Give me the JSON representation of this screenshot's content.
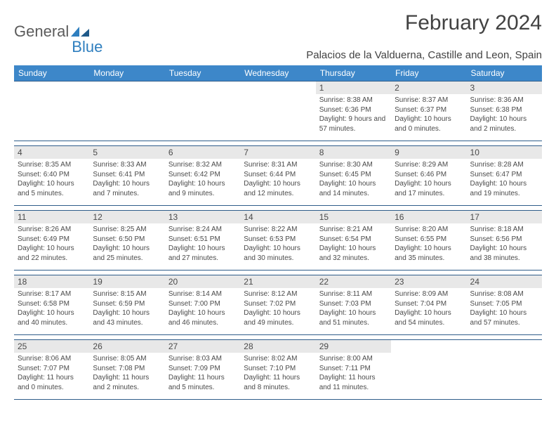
{
  "logo": {
    "textGeneral": "General",
    "textBlue": "Blue"
  },
  "title": "February 2024",
  "location": "Palacios de la Valduerna, Castille and Leon, Spain",
  "colors": {
    "headerBg": "#3d87c9",
    "headerText": "#ffffff",
    "divider": "#2f5d8a",
    "dayBarBg": "#e8e8e8",
    "bodyText": "#4a4a4a",
    "logoGeneral": "#5b5b5b",
    "logoBlue": "#2f7fbf"
  },
  "dayHeaders": [
    "Sunday",
    "Monday",
    "Tuesday",
    "Wednesday",
    "Thursday",
    "Friday",
    "Saturday"
  ],
  "weeks": [
    [
      {
        "day": "",
        "sunrise": "",
        "sunset": "",
        "daylight": ""
      },
      {
        "day": "",
        "sunrise": "",
        "sunset": "",
        "daylight": ""
      },
      {
        "day": "",
        "sunrise": "",
        "sunset": "",
        "daylight": ""
      },
      {
        "day": "",
        "sunrise": "",
        "sunset": "",
        "daylight": ""
      },
      {
        "day": "1",
        "sunrise": "Sunrise: 8:38 AM",
        "sunset": "Sunset: 6:36 PM",
        "daylight": "Daylight: 9 hours and 57 minutes."
      },
      {
        "day": "2",
        "sunrise": "Sunrise: 8:37 AM",
        "sunset": "Sunset: 6:37 PM",
        "daylight": "Daylight: 10 hours and 0 minutes."
      },
      {
        "day": "3",
        "sunrise": "Sunrise: 8:36 AM",
        "sunset": "Sunset: 6:38 PM",
        "daylight": "Daylight: 10 hours and 2 minutes."
      }
    ],
    [
      {
        "day": "4",
        "sunrise": "Sunrise: 8:35 AM",
        "sunset": "Sunset: 6:40 PM",
        "daylight": "Daylight: 10 hours and 5 minutes."
      },
      {
        "day": "5",
        "sunrise": "Sunrise: 8:33 AM",
        "sunset": "Sunset: 6:41 PM",
        "daylight": "Daylight: 10 hours and 7 minutes."
      },
      {
        "day": "6",
        "sunrise": "Sunrise: 8:32 AM",
        "sunset": "Sunset: 6:42 PM",
        "daylight": "Daylight: 10 hours and 9 minutes."
      },
      {
        "day": "7",
        "sunrise": "Sunrise: 8:31 AM",
        "sunset": "Sunset: 6:44 PM",
        "daylight": "Daylight: 10 hours and 12 minutes."
      },
      {
        "day": "8",
        "sunrise": "Sunrise: 8:30 AM",
        "sunset": "Sunset: 6:45 PM",
        "daylight": "Daylight: 10 hours and 14 minutes."
      },
      {
        "day": "9",
        "sunrise": "Sunrise: 8:29 AM",
        "sunset": "Sunset: 6:46 PM",
        "daylight": "Daylight: 10 hours and 17 minutes."
      },
      {
        "day": "10",
        "sunrise": "Sunrise: 8:28 AM",
        "sunset": "Sunset: 6:47 PM",
        "daylight": "Daylight: 10 hours and 19 minutes."
      }
    ],
    [
      {
        "day": "11",
        "sunrise": "Sunrise: 8:26 AM",
        "sunset": "Sunset: 6:49 PM",
        "daylight": "Daylight: 10 hours and 22 minutes."
      },
      {
        "day": "12",
        "sunrise": "Sunrise: 8:25 AM",
        "sunset": "Sunset: 6:50 PM",
        "daylight": "Daylight: 10 hours and 25 minutes."
      },
      {
        "day": "13",
        "sunrise": "Sunrise: 8:24 AM",
        "sunset": "Sunset: 6:51 PM",
        "daylight": "Daylight: 10 hours and 27 minutes."
      },
      {
        "day": "14",
        "sunrise": "Sunrise: 8:22 AM",
        "sunset": "Sunset: 6:53 PM",
        "daylight": "Daylight: 10 hours and 30 minutes."
      },
      {
        "day": "15",
        "sunrise": "Sunrise: 8:21 AM",
        "sunset": "Sunset: 6:54 PM",
        "daylight": "Daylight: 10 hours and 32 minutes."
      },
      {
        "day": "16",
        "sunrise": "Sunrise: 8:20 AM",
        "sunset": "Sunset: 6:55 PM",
        "daylight": "Daylight: 10 hours and 35 minutes."
      },
      {
        "day": "17",
        "sunrise": "Sunrise: 8:18 AM",
        "sunset": "Sunset: 6:56 PM",
        "daylight": "Daylight: 10 hours and 38 minutes."
      }
    ],
    [
      {
        "day": "18",
        "sunrise": "Sunrise: 8:17 AM",
        "sunset": "Sunset: 6:58 PM",
        "daylight": "Daylight: 10 hours and 40 minutes."
      },
      {
        "day": "19",
        "sunrise": "Sunrise: 8:15 AM",
        "sunset": "Sunset: 6:59 PM",
        "daylight": "Daylight: 10 hours and 43 minutes."
      },
      {
        "day": "20",
        "sunrise": "Sunrise: 8:14 AM",
        "sunset": "Sunset: 7:00 PM",
        "daylight": "Daylight: 10 hours and 46 minutes."
      },
      {
        "day": "21",
        "sunrise": "Sunrise: 8:12 AM",
        "sunset": "Sunset: 7:02 PM",
        "daylight": "Daylight: 10 hours and 49 minutes."
      },
      {
        "day": "22",
        "sunrise": "Sunrise: 8:11 AM",
        "sunset": "Sunset: 7:03 PM",
        "daylight": "Daylight: 10 hours and 51 minutes."
      },
      {
        "day": "23",
        "sunrise": "Sunrise: 8:09 AM",
        "sunset": "Sunset: 7:04 PM",
        "daylight": "Daylight: 10 hours and 54 minutes."
      },
      {
        "day": "24",
        "sunrise": "Sunrise: 8:08 AM",
        "sunset": "Sunset: 7:05 PM",
        "daylight": "Daylight: 10 hours and 57 minutes."
      }
    ],
    [
      {
        "day": "25",
        "sunrise": "Sunrise: 8:06 AM",
        "sunset": "Sunset: 7:07 PM",
        "daylight": "Daylight: 11 hours and 0 minutes."
      },
      {
        "day": "26",
        "sunrise": "Sunrise: 8:05 AM",
        "sunset": "Sunset: 7:08 PM",
        "daylight": "Daylight: 11 hours and 2 minutes."
      },
      {
        "day": "27",
        "sunrise": "Sunrise: 8:03 AM",
        "sunset": "Sunset: 7:09 PM",
        "daylight": "Daylight: 11 hours and 5 minutes."
      },
      {
        "day": "28",
        "sunrise": "Sunrise: 8:02 AM",
        "sunset": "Sunset: 7:10 PM",
        "daylight": "Daylight: 11 hours and 8 minutes."
      },
      {
        "day": "29",
        "sunrise": "Sunrise: 8:00 AM",
        "sunset": "Sunset: 7:11 PM",
        "daylight": "Daylight: 11 hours and 11 minutes."
      },
      {
        "day": "",
        "sunrise": "",
        "sunset": "",
        "daylight": ""
      },
      {
        "day": "",
        "sunrise": "",
        "sunset": "",
        "daylight": ""
      }
    ]
  ]
}
